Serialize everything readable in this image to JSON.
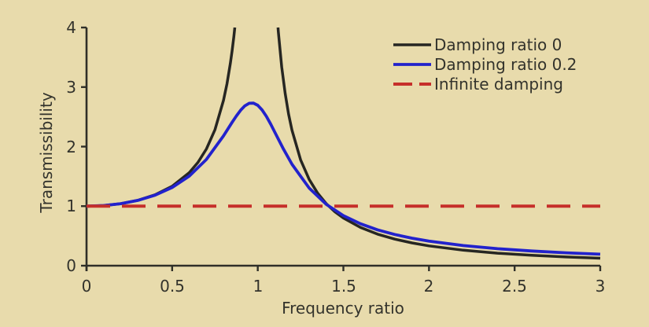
{
  "background_color": "#e8dbac",
  "text_color": "#33332c",
  "axis_color": "#2f2f28",
  "chart_data": {
    "type": "line",
    "title": "",
    "xlabel": "Frequency ratio",
    "ylabel": "Transmissibility",
    "xlim": [
      0,
      3
    ],
    "ylim": [
      0,
      4
    ],
    "xtick_labels": [
      "0",
      "0.5",
      "1",
      "1.5",
      "2",
      "2.5",
      "3"
    ],
    "ytick_labels": [
      "0",
      "1",
      "2",
      "3",
      "4"
    ],
    "grid": false,
    "legend_position": "top-right",
    "series": [
      {
        "name": "Damping ratio 0",
        "color": "#262622",
        "style": "solid",
        "width": 3.5,
        "segments": [
          [
            [
              0,
              1.0
            ],
            [
              0.1,
              1.0101
            ],
            [
              0.2,
              1.0417
            ],
            [
              0.3,
              1.0989
            ],
            [
              0.4,
              1.1905
            ],
            [
              0.5,
              1.3333
            ],
            [
              0.6,
              1.5625
            ],
            [
              0.65,
              1.7316
            ],
            [
              0.7,
              1.9608
            ],
            [
              0.75,
              2.2857
            ],
            [
              0.8,
              2.7778
            ],
            [
              0.82,
              3.0525
            ],
            [
              0.84,
              3.3967
            ],
            [
              0.85,
              3.6036
            ],
            [
              0.86,
              3.8402
            ],
            [
              0.866,
              4.0
            ]
          ],
          [
            [
              1.118,
              4.0
            ],
            [
              1.12,
              3.9308
            ],
            [
              1.14,
              3.3378
            ],
            [
              1.16,
              2.8935
            ],
            [
              1.18,
              2.5484
            ],
            [
              1.2,
              2.2727
            ],
            [
              1.25,
              1.7778
            ],
            [
              1.3,
              1.4493
            ],
            [
              1.35,
              1.2158
            ],
            [
              1.4,
              1.0417
            ],
            [
              1.45,
              0.907
            ],
            [
              1.5,
              0.8
            ],
            [
              1.6,
              0.641
            ],
            [
              1.7,
              0.5291
            ],
            [
              1.8,
              0.4464
            ],
            [
              1.9,
              0.3831
            ],
            [
              2.0,
              0.3333
            ],
            [
              2.2,
              0.2604
            ],
            [
              2.4,
              0.2101
            ],
            [
              2.6,
              0.1736
            ],
            [
              2.8,
              0.1462
            ],
            [
              3.0,
              0.125
            ]
          ]
        ]
      },
      {
        "name": "Damping ratio 0.2",
        "color": "#2222cc",
        "style": "solid",
        "width": 3.8,
        "segments": [
          [
            [
              0,
              1.0
            ],
            [
              0.1,
              1.0101
            ],
            [
              0.2,
              1.0414
            ],
            [
              0.3,
              1.0973
            ],
            [
              0.4,
              1.1843
            ],
            [
              0.5,
              1.3138
            ],
            [
              0.6,
              1.5046
            ],
            [
              0.7,
              1.785
            ],
            [
              0.8,
              2.1798
            ],
            [
              0.85,
              2.4068
            ],
            [
              0.875,
              2.5152
            ],
            [
              0.9,
              2.6109
            ],
            [
              0.925,
              2.6846
            ],
            [
              0.95,
              2.727
            ],
            [
              0.975,
              2.7305
            ],
            [
              1.0,
              2.6926
            ],
            [
              1.025,
              2.6161
            ],
            [
              1.05,
              2.5088
            ],
            [
              1.075,
              2.3804
            ],
            [
              1.1,
              2.2408
            ],
            [
              1.15,
              1.9593
            ],
            [
              1.2,
              1.7035
            ],
            [
              1.3,
              1.3045
            ],
            [
              1.4,
              1.0312
            ],
            [
              1.5,
              0.8411
            ],
            [
              1.6,
              0.7041
            ],
            [
              1.7,
              0.6021
            ],
            [
              1.8,
              0.5237
            ],
            [
              1.9,
              0.462
            ],
            [
              2.0,
              0.4125
            ],
            [
              2.2,
              0.3381
            ],
            [
              2.4,
              0.2855
            ],
            [
              2.6,
              0.2465
            ],
            [
              2.8,
              0.2166
            ],
            [
              3.0,
              0.1931
            ]
          ]
        ]
      },
      {
        "name": "Infinite damping",
        "color": "#c62f2a",
        "style": "dashed",
        "width": 4,
        "segments": [
          [
            [
              0,
              1.0
            ],
            [
              3.0,
              1.0
            ]
          ]
        ]
      }
    ]
  }
}
